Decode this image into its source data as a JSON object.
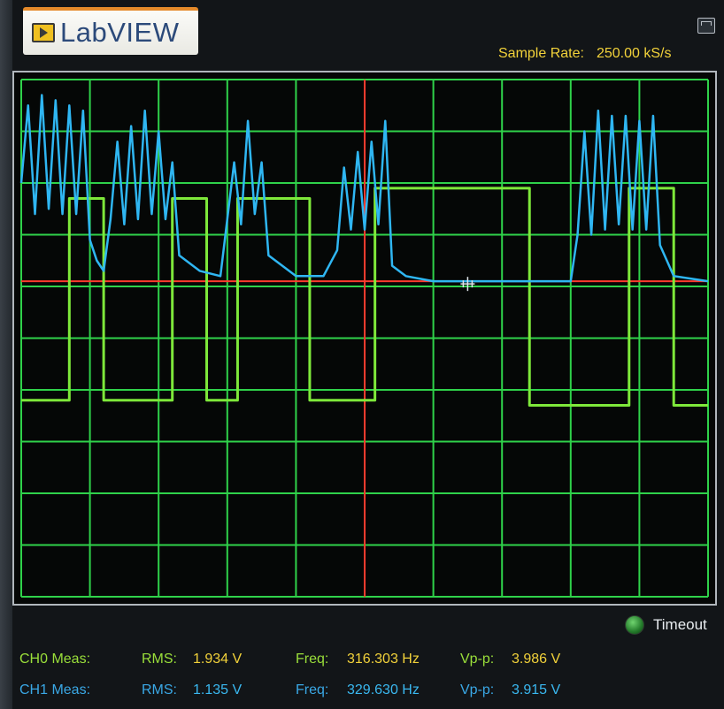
{
  "logo": {
    "text": "LabVIEW"
  },
  "header": {
    "sample_rate_label": "Sample Rate:",
    "sample_rate_value": "250.00 kS/s"
  },
  "colors": {
    "grid": "#2fd24a",
    "trigger": "#ff3b2e",
    "ch0_trace": "#7ee83a",
    "ch1_trace": "#2fb6f2",
    "label_yellow": "#f2d23a"
  },
  "status": {
    "timeout_label": "Timeout"
  },
  "measurements": [
    {
      "channel": "CH0 Meas:",
      "rms_label": "RMS:",
      "rms_value": "1.934 V",
      "freq_label": "Freq:",
      "freq_value": "316.303 Hz",
      "vpp_label": "Vp-p:",
      "vpp_value": "3.986 V"
    },
    {
      "channel": "CH1 Meas:",
      "rms_label": "RMS:",
      "rms_value": "1.135 V",
      "freq_label": "Freq:",
      "freq_value": "329.630 Hz",
      "vpp_label": "Vp-p:",
      "vpp_value": "3.915 V"
    }
  ],
  "chart_data": {
    "type": "line",
    "grid_divisions": {
      "x": 10,
      "y": 10
    },
    "grid": true,
    "cursor_division": 5,
    "series": [
      {
        "channel": "CH0",
        "points_div": [
          [
            0,
            6.2
          ],
          [
            0.7,
            6.2
          ],
          [
            0.7,
            2.3
          ],
          [
            1.2,
            2.3
          ],
          [
            1.2,
            6.2
          ],
          [
            2.2,
            6.2
          ],
          [
            2.2,
            2.3
          ],
          [
            2.7,
            2.3
          ],
          [
            2.7,
            6.2
          ],
          [
            3.15,
            6.2
          ],
          [
            3.15,
            2.3
          ],
          [
            4.2,
            2.3
          ],
          [
            4.2,
            6.2
          ],
          [
            5.15,
            6.2
          ],
          [
            5.15,
            2.1
          ],
          [
            7.4,
            2.1
          ],
          [
            7.4,
            6.3
          ],
          [
            8.85,
            6.3
          ],
          [
            8.85,
            2.1
          ],
          [
            9.5,
            2.1
          ],
          [
            9.5,
            6.3
          ],
          [
            10,
            6.3
          ]
        ]
      },
      {
        "channel": "CH1",
        "points_div": [
          [
            0,
            2.0
          ],
          [
            0.1,
            0.5
          ],
          [
            0.2,
            2.6
          ],
          [
            0.3,
            0.3
          ],
          [
            0.4,
            2.5
          ],
          [
            0.5,
            0.4
          ],
          [
            0.6,
            2.6
          ],
          [
            0.7,
            0.5
          ],
          [
            0.8,
            2.6
          ],
          [
            0.9,
            0.6
          ],
          [
            1.0,
            3.1
          ],
          [
            1.1,
            3.5
          ],
          [
            1.2,
            3.7
          ],
          [
            1.3,
            2.7
          ],
          [
            1.4,
            1.2
          ],
          [
            1.5,
            2.8
          ],
          [
            1.6,
            0.9
          ],
          [
            1.7,
            2.7
          ],
          [
            1.8,
            0.6
          ],
          [
            1.9,
            2.6
          ],
          [
            2.0,
            1.0
          ],
          [
            2.1,
            2.7
          ],
          [
            2.2,
            1.6
          ],
          [
            2.3,
            3.4
          ],
          [
            2.6,
            3.7
          ],
          [
            2.9,
            3.8
          ],
          [
            3.0,
            2.7
          ],
          [
            3.1,
            1.6
          ],
          [
            3.2,
            2.8
          ],
          [
            3.3,
            0.8
          ],
          [
            3.4,
            2.6
          ],
          [
            3.5,
            1.6
          ],
          [
            3.6,
            3.4
          ],
          [
            4.0,
            3.8
          ],
          [
            4.3,
            3.8
          ],
          [
            4.4,
            3.8
          ],
          [
            4.6,
            3.3
          ],
          [
            4.7,
            1.7
          ],
          [
            4.8,
            2.9
          ],
          [
            4.9,
            1.4
          ],
          [
            5.0,
            2.9
          ],
          [
            5.1,
            1.2
          ],
          [
            5.2,
            2.8
          ],
          [
            5.3,
            0.8
          ],
          [
            5.4,
            3.6
          ],
          [
            5.6,
            3.8
          ],
          [
            6.0,
            3.9
          ],
          [
            8.0,
            3.9
          ],
          [
            8.1,
            3.0
          ],
          [
            8.2,
            1.0
          ],
          [
            8.3,
            3.0
          ],
          [
            8.4,
            0.6
          ],
          [
            8.5,
            2.9
          ],
          [
            8.6,
            0.7
          ],
          [
            8.7,
            2.8
          ],
          [
            8.8,
            0.7
          ],
          [
            8.9,
            2.9
          ],
          [
            9.0,
            0.8
          ],
          [
            9.1,
            2.9
          ],
          [
            9.2,
            0.7
          ],
          [
            9.3,
            3.2
          ],
          [
            9.5,
            3.8
          ],
          [
            10,
            3.9
          ]
        ]
      }
    ]
  }
}
